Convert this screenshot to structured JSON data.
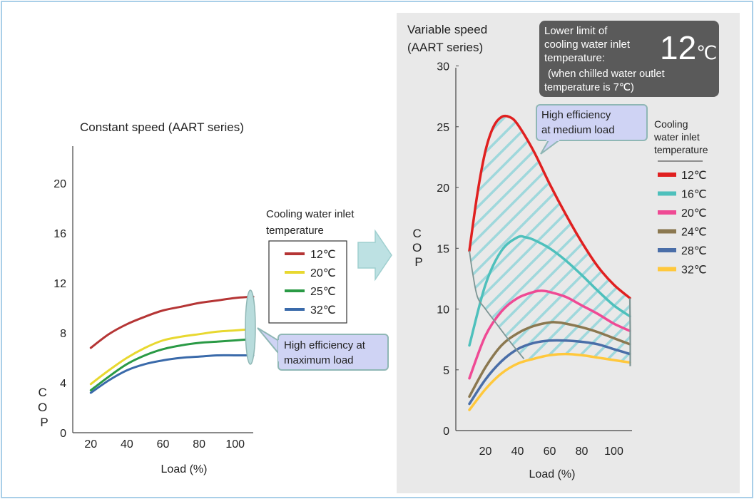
{
  "chart_data": [
    {
      "type": "line",
      "title": "Constant speed (AART series)",
      "xlabel": "Load (%)",
      "ylabel": "COP",
      "x_ticks": [
        20,
        40,
        60,
        80,
        100
      ],
      "y_ticks": [
        0,
        4,
        8,
        12,
        16,
        20
      ],
      "xlim": [
        10,
        110
      ],
      "ylim": [
        0,
        23
      ],
      "legend_title": "Cooling water inlet temperature",
      "legend_position": "right",
      "series": [
        {
          "name": "12℃",
          "color": "#b53535",
          "x": [
            20,
            30,
            40,
            50,
            60,
            70,
            80,
            90,
            100,
            110
          ],
          "y": [
            6.8,
            7.9,
            8.7,
            9.3,
            9.8,
            10.1,
            10.4,
            10.6,
            10.8,
            10.9
          ]
        },
        {
          "name": "20℃",
          "color": "#e8d830",
          "x": [
            20,
            30,
            40,
            50,
            60,
            70,
            80,
            90,
            100,
            110
          ],
          "y": [
            3.9,
            5.0,
            6.0,
            6.8,
            7.4,
            7.7,
            7.9,
            8.1,
            8.2,
            8.3
          ]
        },
        {
          "name": "25℃",
          "color": "#2a9a45",
          "x": [
            20,
            30,
            40,
            50,
            60,
            70,
            80,
            90,
            100,
            110
          ],
          "y": [
            3.4,
            4.5,
            5.5,
            6.2,
            6.7,
            7.0,
            7.2,
            7.3,
            7.4,
            7.5
          ]
        },
        {
          "name": "32℃",
          "color": "#3a6aaa",
          "x": [
            20,
            30,
            40,
            50,
            60,
            70,
            80,
            90,
            100,
            110
          ],
          "y": [
            3.2,
            4.2,
            5.0,
            5.5,
            5.8,
            6.0,
            6.1,
            6.2,
            6.2,
            6.2
          ]
        }
      ],
      "annotation": "High efficiency at maximum load"
    },
    {
      "type": "line",
      "title": "Variable speed (AART series)",
      "xlabel": "Load (%)",
      "ylabel": "COP",
      "x_ticks": [
        20,
        40,
        60,
        80,
        100
      ],
      "y_ticks": [
        0,
        5,
        10,
        15,
        20,
        25,
        30
      ],
      "xlim": [
        0,
        110
      ],
      "ylim": [
        0,
        30
      ],
      "legend_title": "Cooling water inlet temperature",
      "legend_position": "right",
      "series": [
        {
          "name": "12℃",
          "color": "#e02020",
          "x": [
            10,
            15,
            20,
            25,
            30,
            35,
            40,
            50,
            60,
            70,
            80,
            90,
            100,
            110
          ],
          "y": [
            14.8,
            19.5,
            23.0,
            25.0,
            25.8,
            25.8,
            25.2,
            23.0,
            20.3,
            17.8,
            15.5,
            13.5,
            12.0,
            10.9
          ]
        },
        {
          "name": "16℃",
          "color": "#4ec0bc",
          "x": [
            10,
            20,
            30,
            40,
            45,
            50,
            60,
            70,
            80,
            90,
            100,
            110
          ],
          "y": [
            7.0,
            12.0,
            14.8,
            15.9,
            15.9,
            15.7,
            15.0,
            14.0,
            12.8,
            11.5,
            10.3,
            9.4
          ]
        },
        {
          "name": "20℃",
          "color": "#ef4a94",
          "x": [
            10,
            20,
            30,
            40,
            50,
            55,
            60,
            70,
            80,
            90,
            100,
            110
          ],
          "y": [
            4.3,
            7.8,
            9.8,
            10.9,
            11.4,
            11.5,
            11.4,
            11.0,
            10.3,
            9.6,
            8.8,
            8.2
          ]
        },
        {
          "name": "24℃",
          "color": "#8b7850",
          "x": [
            10,
            20,
            30,
            40,
            50,
            60,
            65,
            70,
            80,
            90,
            100,
            110
          ],
          "y": [
            2.8,
            5.2,
            7.0,
            8.0,
            8.6,
            8.9,
            8.9,
            8.8,
            8.5,
            8.1,
            7.6,
            7.1
          ]
        },
        {
          "name": "28℃",
          "color": "#4a6ea8",
          "x": [
            10,
            20,
            30,
            40,
            50,
            60,
            70,
            80,
            90,
            100,
            110
          ],
          "y": [
            2.2,
            4.2,
            5.7,
            6.7,
            7.2,
            7.4,
            7.4,
            7.3,
            7.1,
            6.7,
            6.3
          ]
        },
        {
          "name": "32℃",
          "color": "#ffc83c",
          "x": [
            10,
            20,
            30,
            40,
            50,
            60,
            70,
            80,
            90,
            100,
            110
          ],
          "y": [
            1.7,
            3.4,
            4.7,
            5.5,
            5.9,
            6.2,
            6.3,
            6.2,
            6.0,
            5.8,
            5.6
          ]
        }
      ],
      "annotation": "High efficiency at medium load"
    }
  ],
  "info_box": {
    "line1": "Lower limit of",
    "line2": "cooling water inlet",
    "line3": "temperature:",
    "value": "12",
    "unit": "℃",
    "note1": "(when chilled water outlet",
    "note2": "temperature is 7℃)"
  },
  "colors": {
    "panel_bg": "#e9e9e9",
    "frame": "#a9cfe8",
    "callout_fill": "#cfd3f4",
    "callout_border": "#8fb7b5",
    "info_box_bg": "#5a5a5a",
    "hatch": "#9fd8dc",
    "arrow": "#bde1e3"
  }
}
